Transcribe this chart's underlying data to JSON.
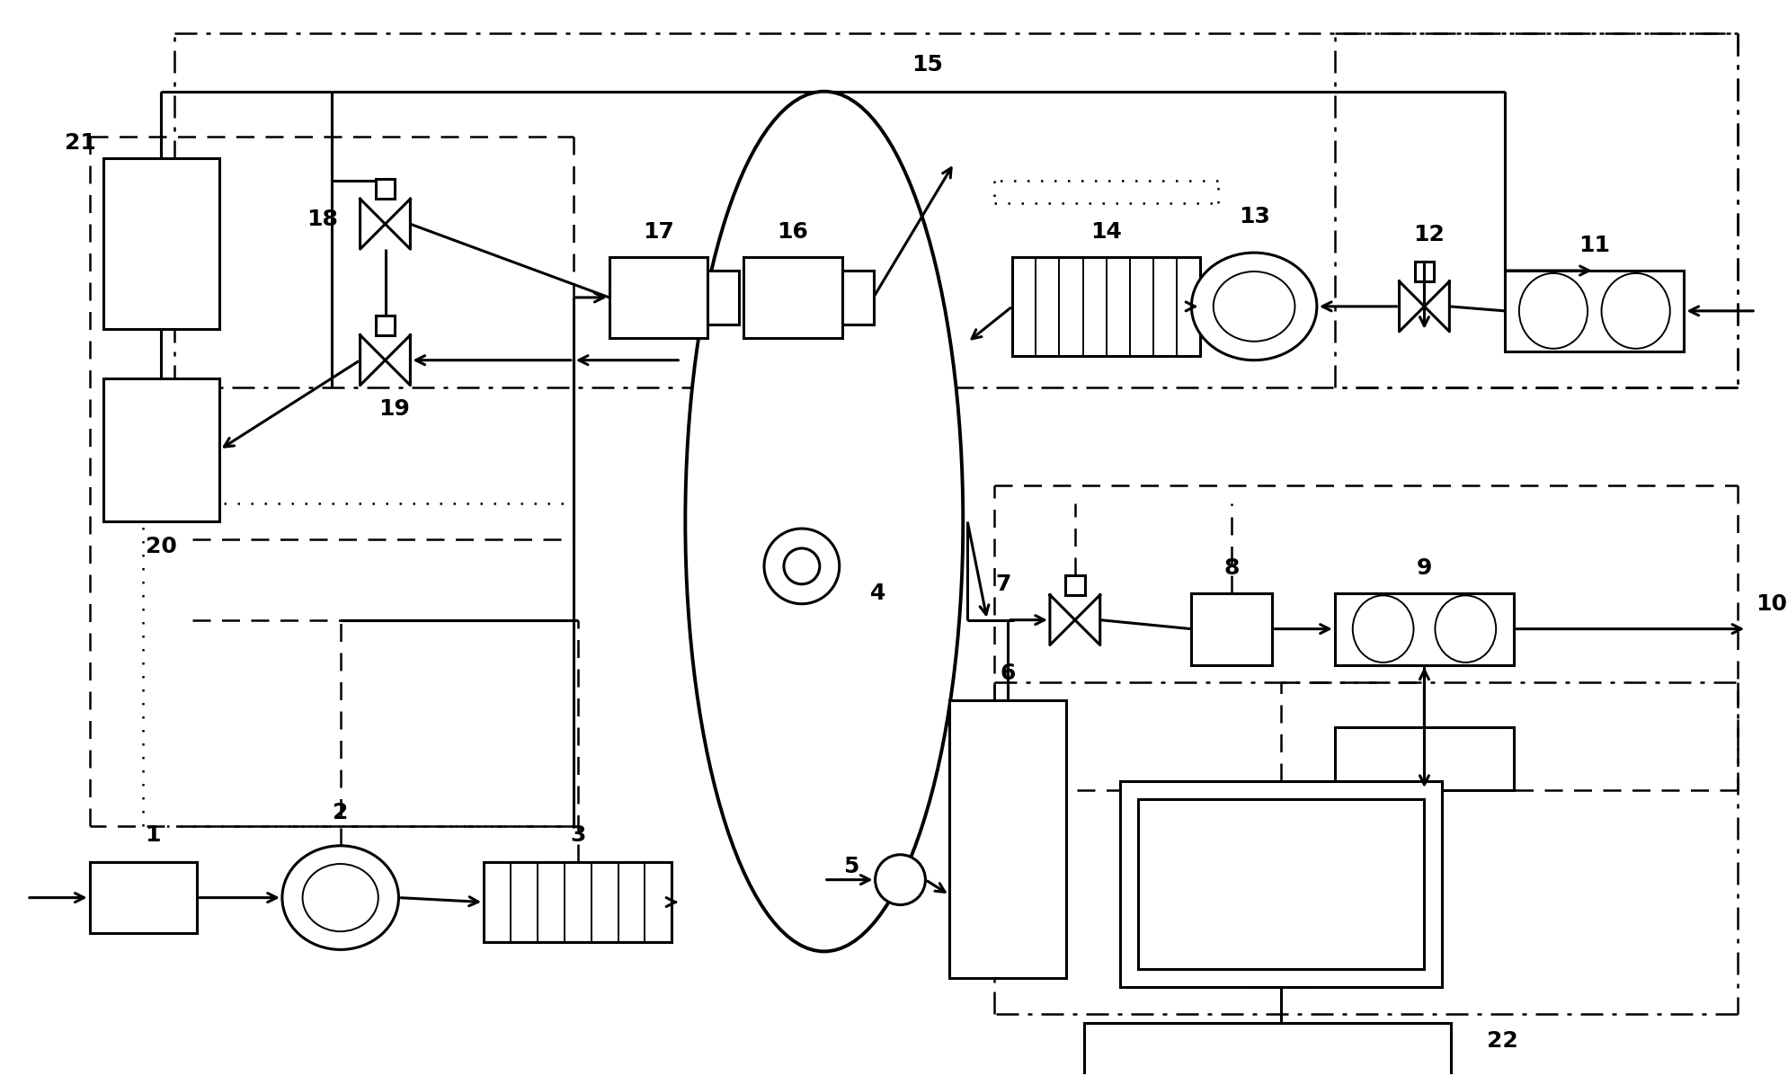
{
  "bg": "#ffffff",
  "lc": "#000000",
  "lw": 2.2,
  "tlw": 1.4,
  "fw": 19.9,
  "fh": 11.97
}
